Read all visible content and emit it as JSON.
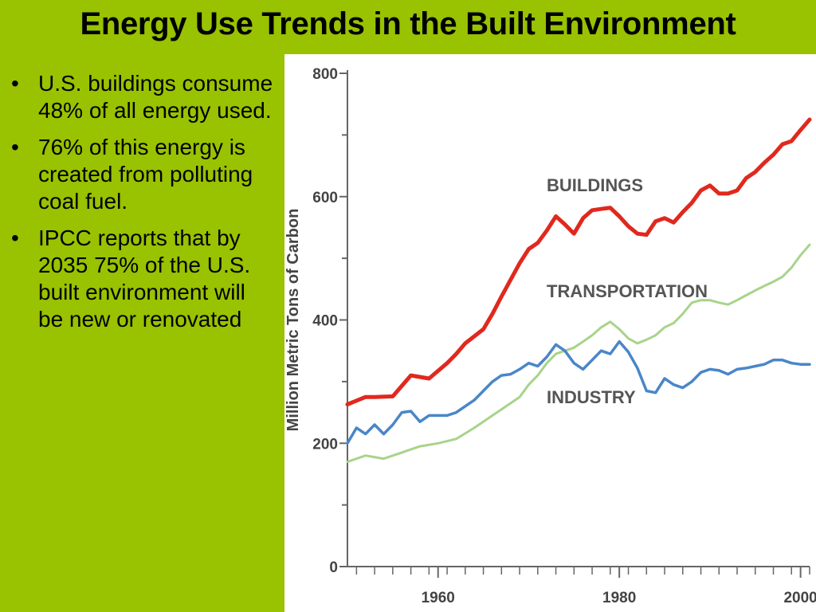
{
  "slide": {
    "title": "Energy Use Trends in the Built Environment",
    "bullets": [
      "U.S. buildings consume 48% of all energy used.",
      "76% of this energy is created from polluting coal fuel.",
      "IPCC reports that by 2035 75% of the U.S. built environment will be new or renovated"
    ],
    "bullet_glyph": "•"
  },
  "colors": {
    "background": "#99c200",
    "buildings": "#e0291e",
    "transportation": "#a8d48a",
    "industry": "#4a86c8",
    "axis": "#666666"
  },
  "chart_data": {
    "type": "line",
    "ylabel": "Million Metric Tons of Carbon",
    "xlabel": "",
    "ylim": [
      0,
      800
    ],
    "xlim": [
      1950,
      2001
    ],
    "y_ticks": [
      "0",
      "200",
      "400",
      "600",
      "800"
    ],
    "x_ticks": [
      "1960",
      "1980",
      "2000"
    ],
    "grid": false,
    "legend": "inline labels",
    "series": [
      {
        "name": "BUILDINGS",
        "color": "#e0291e",
        "x": [
          1950,
          1952,
          1953,
          1955,
          1957,
          1959,
          1961,
          1962,
          1963,
          1965,
          1966,
          1967,
          1968,
          1969,
          1970,
          1971,
          1972,
          1973,
          1974,
          1975,
          1976,
          1977,
          1978,
          1979,
          1980,
          1981,
          1982,
          1983,
          1984,
          1985,
          1986,
          1987,
          1988,
          1989,
          1990,
          1991,
          1992,
          1993,
          1994,
          1995,
          1996,
          1997,
          1998,
          1999,
          2000,
          2001
        ],
        "values": [
          263,
          275,
          275,
          276,
          310,
          305,
          330,
          345,
          362,
          385,
          410,
          438,
          465,
          492,
          515,
          525,
          545,
          568,
          555,
          540,
          565,
          578,
          580,
          582,
          568,
          552,
          540,
          538,
          560,
          565,
          558,
          575,
          590,
          610,
          618,
          605,
          605,
          610,
          630,
          640,
          655,
          668,
          685,
          690,
          708,
          725
        ]
      },
      {
        "name": "TRANSPORTATION",
        "color": "#a8d48a",
        "x": [
          1950,
          1952,
          1954,
          1956,
          1958,
          1960,
          1962,
          1964,
          1966,
          1967,
          1968,
          1969,
          1970,
          1971,
          1972,
          1973,
          1974,
          1975,
          1976,
          1977,
          1978,
          1979,
          1980,
          1981,
          1982,
          1983,
          1984,
          1985,
          1986,
          1987,
          1988,
          1989,
          1990,
          1991,
          1992,
          1993,
          1994,
          1995,
          1996,
          1997,
          1998,
          1999,
          2000,
          2001
        ],
        "values": [
          170,
          180,
          175,
          185,
          195,
          200,
          207,
          225,
          245,
          255,
          265,
          275,
          295,
          310,
          330,
          345,
          350,
          355,
          365,
          375,
          388,
          397,
          385,
          370,
          362,
          368,
          375,
          388,
          395,
          410,
          428,
          432,
          432,
          428,
          425,
          432,
          440,
          448,
          455,
          462,
          470,
          485,
          505,
          522
        ]
      },
      {
        "name": "INDUSTRY",
        "color": "#4a86c8",
        "x": [
          1950,
          1951,
          1952,
          1953,
          1954,
          1955,
          1956,
          1957,
          1958,
          1959,
          1960,
          1961,
          1962,
          1963,
          1964,
          1965,
          1966,
          1967,
          1968,
          1969,
          1970,
          1971,
          1972,
          1973,
          1974,
          1975,
          1976,
          1977,
          1978,
          1979,
          1980,
          1981,
          1982,
          1983,
          1984,
          1985,
          1986,
          1987,
          1988,
          1989,
          1990,
          1991,
          1992,
          1993,
          1994,
          1995,
          1996,
          1997,
          1998,
          1999,
          2000,
          2001
        ],
        "values": [
          200,
          225,
          215,
          230,
          215,
          230,
          250,
          252,
          235,
          245,
          245,
          245,
          250,
          260,
          270,
          285,
          300,
          310,
          312,
          320,
          330,
          325,
          340,
          360,
          350,
          330,
          320,
          335,
          350,
          345,
          365,
          348,
          322,
          285,
          282,
          305,
          295,
          290,
          300,
          315,
          320,
          318,
          312,
          320,
          322,
          325,
          328,
          335,
          335,
          330,
          328,
          328
        ]
      }
    ]
  }
}
